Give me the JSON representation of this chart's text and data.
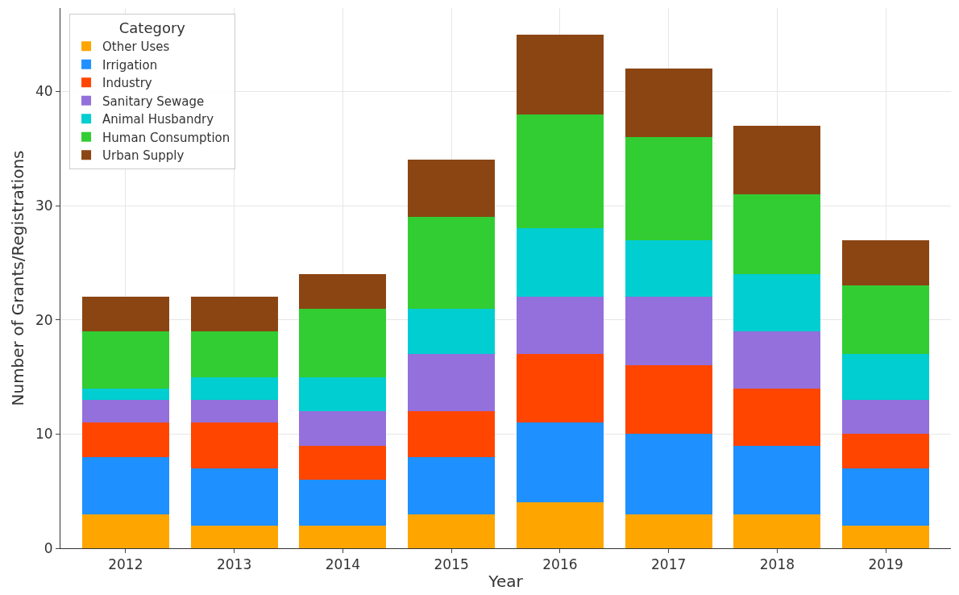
{
  "chart_data": {
    "type": "bar",
    "stacked": true,
    "xlabel": "Year",
    "ylabel": "Number of Grants/Registrations",
    "legend_title": "Category",
    "categories": [
      "2012",
      "2013",
      "2014",
      "2015",
      "2016",
      "2017",
      "2018",
      "2019"
    ],
    "series": [
      {
        "name": "Other Uses",
        "color": "#ffa500",
        "values": [
          3,
          2,
          2,
          3,
          4,
          3,
          3,
          2
        ]
      },
      {
        "name": "Irrigation",
        "color": "#1e90ff",
        "values": [
          5,
          5,
          4,
          5,
          7,
          7,
          6,
          5
        ]
      },
      {
        "name": "Industry",
        "color": "#ff4500",
        "values": [
          3,
          4,
          3,
          4,
          6,
          6,
          5,
          3
        ]
      },
      {
        "name": "Sanitary Sewage",
        "color": "#9370db",
        "values": [
          2,
          2,
          3,
          5,
          5,
          6,
          5,
          3
        ]
      },
      {
        "name": "Animal Husbandry",
        "color": "#00ced1",
        "values": [
          1,
          2,
          3,
          4,
          6,
          5,
          5,
          4
        ]
      },
      {
        "name": "Human Consumption",
        "color": "#32cd32",
        "values": [
          5,
          4,
          6,
          8,
          10,
          9,
          7,
          6
        ]
      },
      {
        "name": "Urban Supply",
        "color": "#8b4513",
        "values": [
          3,
          3,
          3,
          5,
          7,
          6,
          6,
          4
        ]
      }
    ],
    "ylim": [
      0,
      47.3
    ],
    "yticks": [
      0,
      10,
      20,
      30,
      40
    ],
    "grid": true,
    "legend": "top left"
  }
}
